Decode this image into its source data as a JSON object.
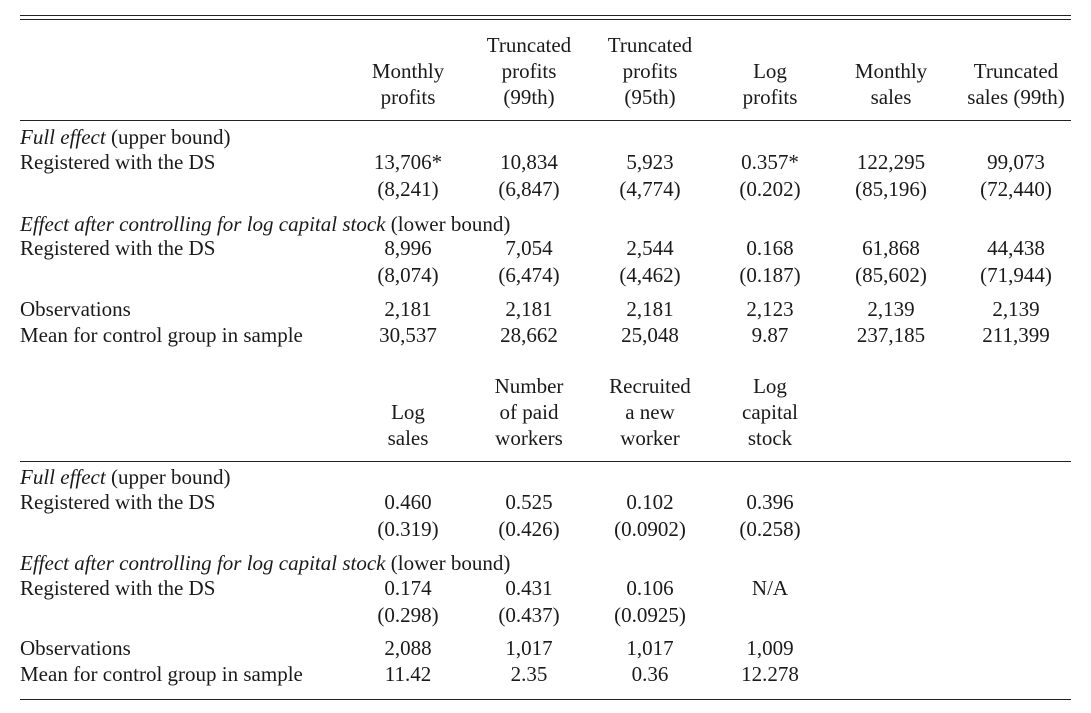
{
  "panel_a": {
    "headers": [
      [
        "Monthly",
        "profits"
      ],
      [
        "Truncated",
        "profits",
        "(99th)"
      ],
      [
        "Truncated",
        "profits",
        "(95th)"
      ],
      [
        "Log",
        "profits"
      ],
      [
        "Monthly",
        "sales"
      ],
      [
        "Truncated",
        "sales (99th)"
      ]
    ],
    "section1_italic": "Full effect",
    "section1_paren": "(upper bound)",
    "section2_italic": "Effect after controlling for log capital stock",
    "section2_paren": "(lower bound)",
    "row_registered": "Registered with the DS",
    "full_coef": [
      "13,706*",
      "10,834",
      "5,923",
      "0.357*",
      "122,295",
      "99,073"
    ],
    "full_se": [
      "(8,241)",
      "(6,847)",
      "(4,774)",
      "(0.202)",
      "(85,196)",
      "(72,440)"
    ],
    "ctrl_coef": [
      "8,996",
      "7,054",
      "2,544",
      "0.168",
      "61,868",
      "44,438"
    ],
    "ctrl_se": [
      "(8,074)",
      "(6,474)",
      "(4,462)",
      "(0.187)",
      "(85,602)",
      "(71,944)"
    ],
    "obs_label": "Observations",
    "obs": [
      "2,181",
      "2,181",
      "2,181",
      "2,123",
      "2,139",
      "2,139"
    ],
    "mean_label": "Mean for control group in sample",
    "mean": [
      "30,537",
      "28,662",
      "25,048",
      "9.87",
      "237,185",
      "211,399"
    ]
  },
  "panel_b": {
    "headers": [
      [
        "Log",
        "sales"
      ],
      [
        "Number",
        "of paid",
        "workers"
      ],
      [
        "Recruited",
        "a new",
        "worker"
      ],
      [
        "Log",
        "capital",
        "stock"
      ]
    ],
    "section1_italic": "Full effect",
    "section1_paren": "(upper bound)",
    "section2_italic": "Effect after controlling for log capital stock",
    "section2_paren": "(lower bound)",
    "row_registered": "Registered with the DS",
    "full_coef": [
      "0.460",
      "0.525",
      "0.102",
      "0.396"
    ],
    "full_se": [
      "(0.319)",
      "(0.426)",
      "(0.0902)",
      "(0.258)"
    ],
    "ctrl_coef": [
      "0.174",
      "0.431",
      "0.106",
      "N/A"
    ],
    "ctrl_se": [
      "(0.298)",
      "(0.437)",
      "(0.0925)",
      ""
    ],
    "obs_label": "Observations",
    "obs": [
      "2,088",
      "1,017",
      "1,017",
      "1,009"
    ],
    "mean_label": "Mean for control group in sample",
    "mean": [
      "11.42",
      "2.35",
      "0.36",
      "12.278"
    ]
  }
}
